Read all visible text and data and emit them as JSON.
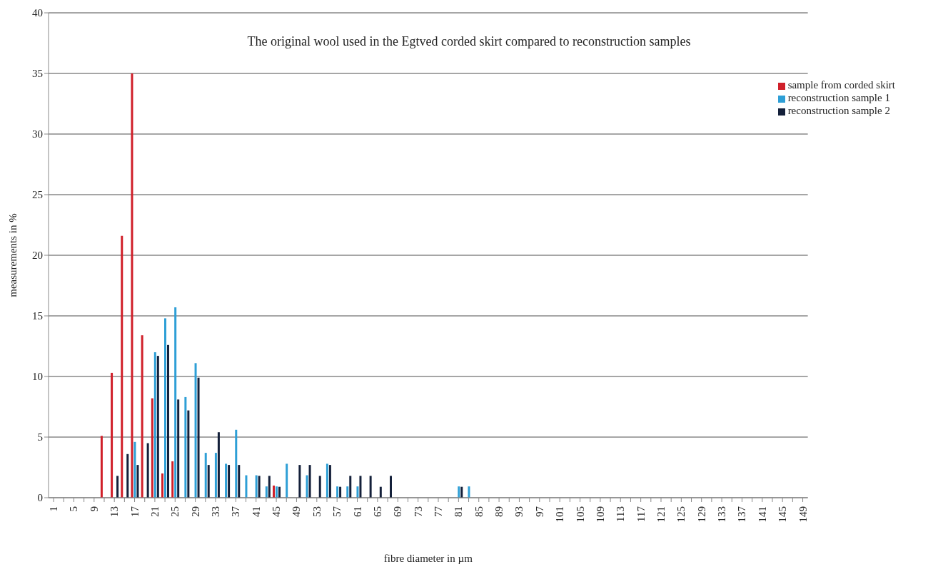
{
  "chart_data": {
    "type": "bar",
    "title": "The original wool used in the Egtved corded skirt compared to reconstruction samples",
    "xlabel": "fibre diameter in µm",
    "ylabel": "measurements in %",
    "categories": [
      "1",
      null,
      "5",
      null,
      "9",
      null,
      "13",
      null,
      "17",
      null,
      "21",
      null,
      "25",
      null,
      "29",
      null,
      "33",
      null,
      "37",
      null,
      "41",
      null,
      "45",
      null,
      "49",
      null,
      "53",
      null,
      "57",
      null,
      "61",
      null,
      "65",
      null,
      "69",
      null,
      "73",
      null,
      "77",
      null,
      "81",
      null,
      "85",
      null,
      "89",
      null,
      "93",
      null,
      "97",
      null,
      "101",
      null,
      "105",
      null,
      "109",
      null,
      "113",
      null,
      "117",
      null,
      "121",
      null,
      "125",
      null,
      "129",
      null,
      "133",
      null,
      "137",
      null,
      "141",
      null,
      "145",
      null,
      "149"
    ],
    "series": [
      {
        "name": "sample from corded skirt",
        "color": "#d0202a",
        "values": [
          0,
          0,
          0,
          0,
          0,
          5.1,
          10.3,
          21.6,
          35,
          13.4,
          8.2,
          2.0,
          3.0,
          0,
          0,
          0,
          0,
          0,
          0,
          0,
          0,
          0,
          1.0,
          0,
          0,
          0,
          0,
          0,
          0,
          0,
          0,
          0,
          0,
          0,
          0,
          0,
          0,
          0,
          0,
          0,
          0,
          0,
          0,
          0,
          0,
          0,
          0,
          0,
          0,
          0,
          0,
          0,
          0,
          0,
          0,
          0,
          0,
          0,
          0,
          0,
          0,
          0,
          0,
          0,
          0,
          0,
          0,
          0,
          0,
          0,
          0,
          0,
          0,
          0,
          0
        ]
      },
      {
        "name": "reconstruction sample 1",
        "color": "#2e9fd6",
        "values": [
          0,
          0,
          0,
          0,
          0,
          0,
          0,
          0,
          4.6,
          0,
          12.0,
          14.8,
          15.7,
          8.3,
          11.1,
          3.7,
          3.7,
          2.8,
          5.6,
          1.85,
          1.85,
          0.93,
          0.93,
          2.8,
          0,
          1.85,
          0,
          2.8,
          0.93,
          0.93,
          0.93,
          0,
          0,
          0,
          0,
          0,
          0,
          0,
          0,
          0,
          0.93,
          0.93,
          0,
          0,
          0,
          0,
          0,
          0,
          0,
          0,
          0,
          0,
          0,
          0,
          0,
          0,
          0,
          0,
          0,
          0,
          0,
          0,
          0,
          0,
          0,
          0,
          0,
          0,
          0,
          0,
          0,
          0,
          0,
          0,
          0
        ]
      },
      {
        "name": "reconstruction sample 2",
        "color": "#14203a",
        "values": [
          0,
          0,
          0,
          0,
          0,
          0,
          1.8,
          3.6,
          2.7,
          4.5,
          11.7,
          12.6,
          8.1,
          7.2,
          9.9,
          2.7,
          5.4,
          2.7,
          2.7,
          0,
          1.8,
          1.8,
          0.9,
          0,
          2.7,
          2.7,
          1.8,
          2.7,
          0.9,
          1.8,
          1.8,
          1.8,
          0.9,
          1.8,
          0,
          0,
          0,
          0,
          0,
          0,
          0.9,
          0,
          0,
          0,
          0,
          0,
          0,
          0,
          0,
          0,
          0,
          0,
          0,
          0,
          0,
          0,
          0,
          0,
          0,
          0,
          0,
          0,
          0,
          0,
          0,
          0,
          0,
          0,
          0,
          0,
          0,
          0,
          0,
          0,
          0
        ]
      }
    ],
    "ylim": [
      0,
      40
    ],
    "yticks": [
      0,
      5,
      10,
      15,
      20,
      25,
      30,
      35,
      40
    ],
    "grid": "y",
    "legend": "top right"
  }
}
